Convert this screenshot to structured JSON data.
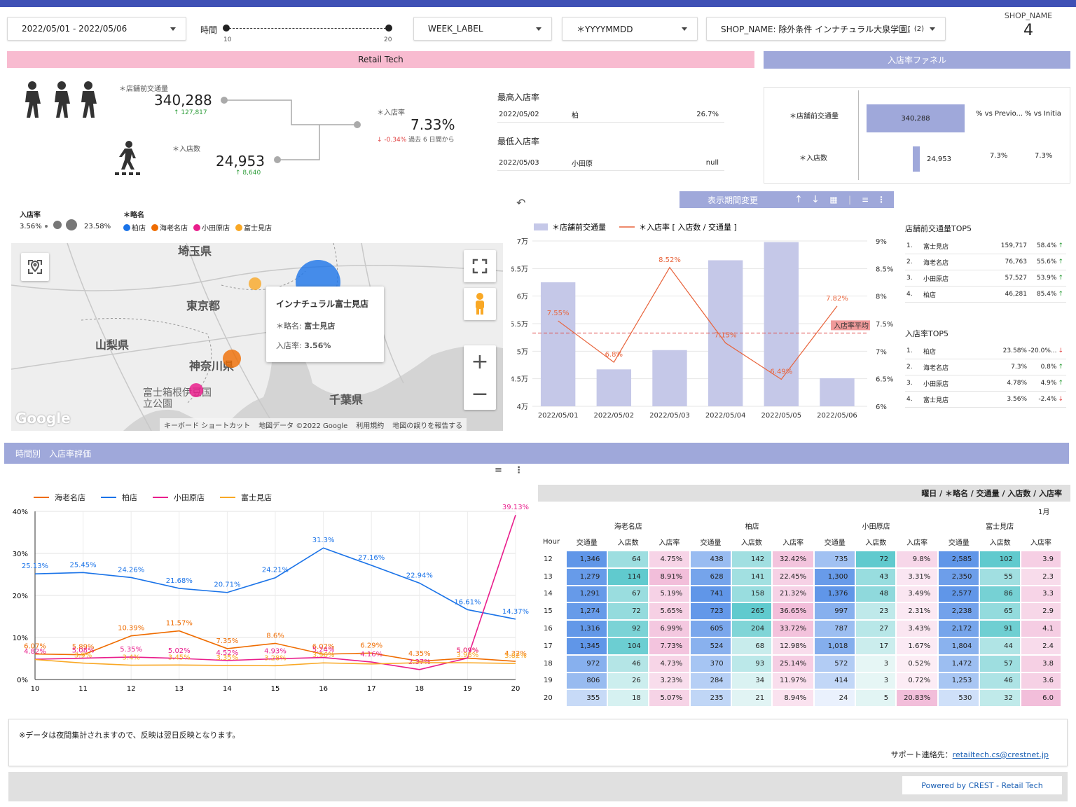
{
  "filters": {
    "date_range": "2022/05/01 - 2022/05/06",
    "time_label": "時間",
    "time_min": "10",
    "time_max": "20",
    "week_label": "WEEK_LABEL",
    "yyyymmdd": "＊YYYYMMDD",
    "shop_filter_key": "SHOP_NAME:",
    "shop_filter_value": "除外条件 インナチュラル大泉学園店,...",
    "shop_filter_count": "(2)",
    "shop_name_label": "SHOP_NAME",
    "shop_name_value": "4"
  },
  "banners": {
    "retail_tech": "Retail Tech",
    "funnel": "入店率ファネル",
    "hourly": "時間別　入店率評価"
  },
  "kpi": {
    "traffic_label": "＊店舗前交通量",
    "traffic_value": "340,288",
    "traffic_delta": "127,817",
    "entries_label": "＊入店数",
    "entries_value": "24,953",
    "entries_delta": "8,640",
    "rate_label": "＊入店率",
    "rate_value": "7.33%",
    "rate_delta": "-0.34%",
    "rate_delta_suffix": "過去 6 日間から"
  },
  "best_worst": {
    "max_title": "最高入店率",
    "max_date": "2022/05/02",
    "max_shop": "柏",
    "max_value": "26.7%",
    "min_title": "最低入店率",
    "min_date": "2022/05/03",
    "min_shop": "小田原",
    "min_value": "null"
  },
  "funnel": {
    "row1_label": "＊店舗前交通量",
    "row1_value": "340,288",
    "col_prev": "% vs Previo...",
    "col_init": "% vs Initia",
    "row2_label": "＊入店数",
    "row2_value": "24,953",
    "row2_prev": "7.3%",
    "row2_init": "7.3%",
    "row1_fraction": 1.0,
    "row2_fraction": 0.0733
  },
  "map_legend": {
    "rate_title": "入店率",
    "rate_min": "3.56%",
    "rate_max": "23.58%",
    "name_title": "＊略名",
    "shops": [
      {
        "name": "柏店",
        "color": "#1a73e8"
      },
      {
        "name": "海老名店",
        "color": "#ef6c00"
      },
      {
        "name": "小田原店",
        "color": "#e91e8c"
      },
      {
        "name": "富士見店",
        "color": "#f9a825"
      }
    ]
  },
  "map": {
    "labels": [
      "埼玉県",
      "東京都",
      "山梨県",
      "神奈川県",
      "富士箱根伊豆国立公園",
      "千葉県"
    ],
    "tooltip_title": "インナチュラル富士見店",
    "tooltip_name_label": "＊略名:",
    "tooltip_name_value": "富士見店",
    "tooltip_rate_label": "入店率:",
    "tooltip_rate_value": "3.56%",
    "logo": "Google",
    "footer": [
      "キーボード ショートカット",
      "地図データ ©2022 Google",
      "利用規約",
      "地図の誤りを報告する"
    ]
  },
  "combo_toolbar": {
    "label": "表示期間変更"
  },
  "combo_chart": {
    "type": "bar",
    "categories": [
      "2022/05/01",
      "2022/05/02",
      "2022/05/03",
      "2022/05/04",
      "2022/05/05",
      "2022/05/06"
    ],
    "series": [
      {
        "name": "＊店舗前交通量",
        "values": [
          62500,
          46700,
          50200,
          66500,
          69800,
          45100
        ]
      },
      {
        "name": "＊入店率 [ 入店数 / 交通量 ]",
        "values": [
          7.55,
          6.8,
          8.52,
          7.15,
          6.49,
          7.82
        ]
      }
    ],
    "rate_labels": [
      "7.55%",
      "6.8%",
      "8.52%",
      "7.15%",
      "6.49%",
      "7.82%"
    ],
    "ylim_left": [
      40000,
      70000
    ],
    "ylim_right": [
      6,
      9
    ],
    "yticks_left": [
      "4万",
      "4.5万",
      "5万",
      "5.5万",
      "6万",
      "6.5万",
      "7万"
    ],
    "yticks_right": [
      "6%",
      "6.5%",
      "7%",
      "7.5%",
      "8%",
      "8.5%",
      "9%"
    ],
    "avg_label": "入店率平均",
    "avg_value": 7.33,
    "bar_color": "#c5c8e8",
    "line_color": "#e8643c"
  },
  "traffic_top5": {
    "title": "店舗前交通量TOP5",
    "rows": [
      {
        "rank": "1.",
        "name": "富士見店",
        "value": "159,717",
        "pct": "58.4%"
      },
      {
        "rank": "2.",
        "name": "海老名店",
        "value": "76,763",
        "pct": "55.6%"
      },
      {
        "rank": "3.",
        "name": "小田原店",
        "value": "57,527",
        "pct": "53.9%"
      },
      {
        "rank": "4.",
        "name": "柏店",
        "value": "46,281",
        "pct": "85.4%"
      }
    ]
  },
  "rate_top5": {
    "title": "入店率TOP5",
    "rows": [
      {
        "rank": "1.",
        "name": "柏店",
        "value": "23.58%",
        "pct": "-20.0%..."
      },
      {
        "rank": "2.",
        "name": "海老名店",
        "value": "7.3%",
        "pct": "0.8%"
      },
      {
        "rank": "3.",
        "name": "小田原店",
        "value": "4.78%",
        "pct": "4.9%"
      },
      {
        "rank": "4.",
        "name": "富士見店",
        "value": "3.56%",
        "pct": "-2.4%"
      }
    ]
  },
  "line_chart": {
    "type": "line",
    "x": [
      10,
      11,
      12,
      13,
      14,
      15,
      16,
      17,
      18,
      19,
      20
    ],
    "ylim": [
      0,
      40
    ],
    "yticks": [
      "0%",
      "10%",
      "20%",
      "30%",
      "40%"
    ],
    "series": [
      {
        "name": "海老名店",
        "color": "#ef6c00",
        "values": [
          6.07,
          5.89,
          10.39,
          11.57,
          7.35,
          8.6,
          6.02,
          6.29,
          4.35,
          5.09,
          4.32
        ],
        "labels": [
          "6.07%",
          "5.89%",
          "10.39%",
          "11.57%",
          "7.35%",
          "8.6%",
          "6.02%",
          "6.29%",
          "4.35%",
          "5.09%",
          "4.32%"
        ]
      },
      {
        "name": "柏店",
        "color": "#1a73e8",
        "values": [
          25.13,
          25.45,
          24.26,
          21.68,
          20.71,
          24.21,
          31.3,
          27.16,
          22.94,
          16.61,
          14.37
        ],
        "labels": [
          "25.13%",
          "25.45%",
          "24.26%",
          "21.68%",
          "20.71%",
          "24.21%",
          "31.3%",
          "27.16%",
          "22.94%",
          "16.61%",
          "14.37%"
        ]
      },
      {
        "name": "小田原店",
        "color": "#e91e8c",
        "values": [
          4.82,
          5.08,
          5.35,
          5.02,
          4.52,
          4.93,
          5.24,
          4.16,
          2.37,
          5.09,
          39.13
        ],
        "labels": [
          "4.82%",
          "5.08%",
          "5.35%",
          "5.02%",
          "4.52%",
          "4.93%",
          "5.24%",
          "4.16%",
          "2.37%",
          "5.09%",
          "39.13%"
        ]
      },
      {
        "name": "富士見店",
        "color": "#f9a825",
        "values": [
          4.75,
          3.9,
          3.4,
          3.45,
          3.35,
          3.28,
          3.96,
          3.7,
          4.0,
          3.98,
          3.82
        ],
        "labels": [
          "",
          "3.9%",
          "3.4%",
          "3.45%",
          "3.35%",
          "3.28%",
          "3.96%",
          "",
          "",
          "3.98%",
          "3.82%"
        ]
      }
    ]
  },
  "heat_table": {
    "title": "曜日 / ＊略名 / 交通量 / 入店数 / 入店率",
    "month": "1月",
    "shops": [
      "海老名店",
      "柏店",
      "小田原店",
      "富士見店"
    ],
    "hour_label": "Hour",
    "cols": [
      "交通量",
      "入店数",
      "入店率"
    ],
    "rows": [
      {
        "h": "12",
        "v": [
          "1,346",
          "64",
          "4.75%",
          "438",
          "142",
          "32.42%",
          "735",
          "72",
          "9.8%",
          "2,585",
          "102",
          "3.9"
        ]
      },
      {
        "h": "13",
        "v": [
          "1,279",
          "114",
          "8.91%",
          "628",
          "141",
          "22.45%",
          "1,300",
          "43",
          "3.31%",
          "2,350",
          "55",
          "2.3"
        ]
      },
      {
        "h": "14",
        "v": [
          "1,291",
          "67",
          "5.19%",
          "741",
          "158",
          "21.32%",
          "1,376",
          "48",
          "3.49%",
          "2,577",
          "86",
          "3.3"
        ]
      },
      {
        "h": "15",
        "v": [
          "1,274",
          "72",
          "5.65%",
          "723",
          "265",
          "36.65%",
          "997",
          "23",
          "2.31%",
          "2,238",
          "65",
          "2.9"
        ]
      },
      {
        "h": "16",
        "v": [
          "1,316",
          "92",
          "6.99%",
          "605",
          "204",
          "33.72%",
          "787",
          "27",
          "3.43%",
          "2,172",
          "91",
          "4.1"
        ]
      },
      {
        "h": "17",
        "v": [
          "1,345",
          "104",
          "7.73%",
          "524",
          "68",
          "12.98%",
          "1,018",
          "17",
          "1.67%",
          "1,804",
          "44",
          "2.4"
        ]
      },
      {
        "h": "18",
        "v": [
          "972",
          "46",
          "4.73%",
          "370",
          "93",
          "25.14%",
          "572",
          "3",
          "0.52%",
          "1,472",
          "57",
          "3.8"
        ]
      },
      {
        "h": "19",
        "v": [
          "806",
          "26",
          "3.23%",
          "284",
          "34",
          "11.97%",
          "414",
          "3",
          "0.72%",
          "1,253",
          "46",
          "3.6"
        ]
      },
      {
        "h": "20",
        "v": [
          "355",
          "18",
          "5.07%",
          "235",
          "21",
          "8.94%",
          "24",
          "5",
          "20.83%",
          "530",
          "32",
          "6.0"
        ]
      }
    ]
  },
  "footer": {
    "note": "※データは夜間集計されますので、反映は翌日反映となります。",
    "support_label": "サポート連絡先：",
    "support_email": "retailtech.cs@crestnet.jp",
    "powered": "Powered by CREST - Retail Tech"
  }
}
